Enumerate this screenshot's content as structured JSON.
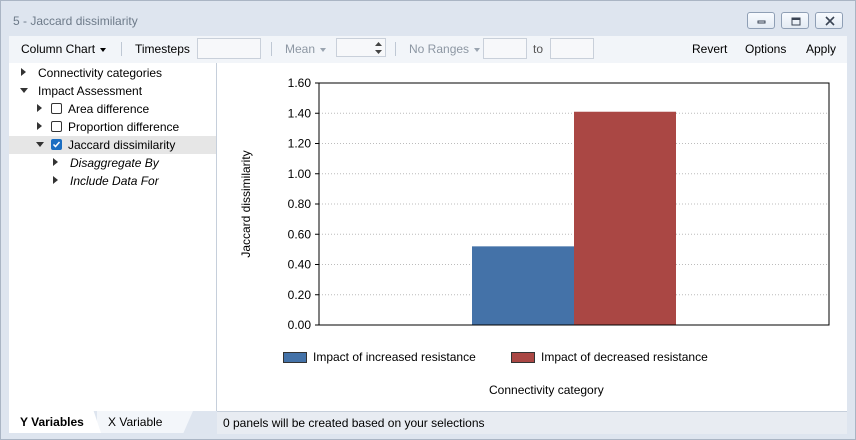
{
  "window": {
    "title": "5 - Jaccard dissimilarity",
    "buttons": [
      "minimize-icon",
      "restore-icon",
      "close-icon"
    ]
  },
  "toolbar": {
    "chart_type": "Column Chart",
    "timesteps_label": "Timesteps",
    "timesteps_value": "",
    "mean_label": "Mean",
    "mean_value": "",
    "ranges_label": "No Ranges",
    "range_from": "",
    "to_label": "to",
    "range_to": "",
    "revert": "Revert",
    "options": "Options",
    "apply": "Apply"
  },
  "tree": {
    "items": [
      {
        "label": "Connectivity categories",
        "level": 0,
        "expander": "collapsed"
      },
      {
        "label": "Impact Assessment",
        "level": 0,
        "expander": "expanded"
      },
      {
        "label": "Area difference",
        "level": 1,
        "expander": "collapsed",
        "checked": false
      },
      {
        "label": "Proportion difference",
        "level": 1,
        "expander": "collapsed",
        "checked": false
      },
      {
        "label": "Jaccard dissimilarity",
        "level": 1,
        "expander": "expanded",
        "checked": true,
        "selected": true
      },
      {
        "label": "Disaggregate By",
        "level": 2,
        "expander": "collapsed",
        "italic": true
      },
      {
        "label": "Include Data For",
        "level": 2,
        "expander": "collapsed",
        "italic": true
      }
    ]
  },
  "tabs": {
    "y_variables": "Y Variables",
    "x_variable": "X Variable",
    "active": "Y Variables"
  },
  "status": {
    "text": "0 panels will be created based on your selections"
  },
  "chart_data": {
    "type": "bar",
    "categories": [
      ""
    ],
    "series": [
      {
        "name": "Impact of increased resistance",
        "values": [
          0.52
        ],
        "color": "#4472a8"
      },
      {
        "name": "Impact of decreased resistance",
        "values": [
          1.41
        ],
        "color": "#aa4744"
      }
    ],
    "ylabel": "Jaccard dissimilarity",
    "xlabel": "Connectivity category",
    "ylim": [
      0,
      1.6
    ],
    "yticks": [
      "0.00",
      "0.20",
      "0.40",
      "0.60",
      "0.80",
      "1.00",
      "1.20",
      "1.40",
      "1.60"
    ],
    "grid": true,
    "legend": "bottom"
  }
}
